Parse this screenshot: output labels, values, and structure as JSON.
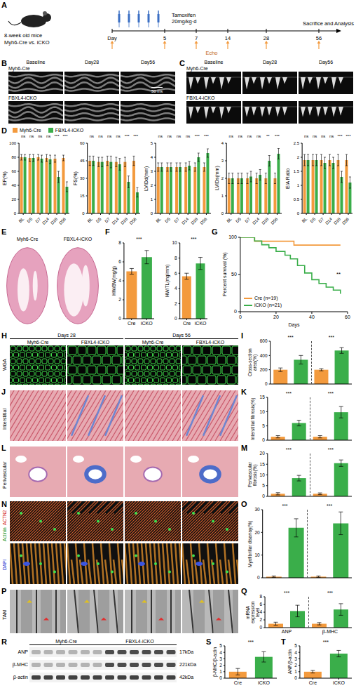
{
  "chart_data": [
    {
      "panel": "D",
      "type": "bar",
      "y_label": "EF(%)",
      "categories": [
        "BL",
        "D5",
        "D7",
        "D14",
        "D28",
        "D56"
      ],
      "series": [
        {
          "name": "Myh6-Cre",
          "color": "#f39a3d",
          "values": [
            80,
            79,
            80,
            79,
            78,
            79
          ],
          "errors": [
            4,
            5,
            4,
            5,
            5,
            4
          ]
        },
        {
          "name": "FBXL4-iCKO",
          "color": "#3aae4a",
          "values": [
            80,
            79,
            78,
            77,
            52,
            38
          ],
          "errors": [
            4,
            5,
            5,
            6,
            8,
            7
          ]
        }
      ],
      "ylim": [
        0,
        100
      ],
      "yticks": [
        0,
        20,
        40,
        60,
        80,
        100
      ],
      "annotations": [
        "ns",
        "ns",
        "ns",
        "ns",
        "***",
        "***"
      ],
      "legend": "top",
      "grid": false
    },
    {
      "type": "bar",
      "y_label": "FS(%)",
      "categories": [
        "BL",
        "D5",
        "D7",
        "D14",
        "D28",
        "D56"
      ],
      "series": [
        {
          "name": "Myh6-Cre",
          "color": "#f39a3d",
          "values": [
            45,
            44,
            45,
            44,
            44,
            45
          ],
          "errors": [
            4,
            4,
            4,
            4,
            4,
            4
          ]
        },
        {
          "name": "FBXL4-iCKO",
          "color": "#3aae4a",
          "values": [
            45,
            44,
            44,
            42,
            27,
            18
          ],
          "errors": [
            4,
            4,
            5,
            5,
            5,
            4
          ]
        }
      ],
      "ylim": [
        0,
        60
      ],
      "yticks": [
        0,
        15,
        30,
        45,
        60
      ],
      "annotations": [
        "ns",
        "ns",
        "ns",
        "ns",
        "***",
        "***"
      ],
      "grid": false
    },
    {
      "type": "bar",
      "y_label": "LVIDd(mm)",
      "categories": [
        "BL",
        "D5",
        "D7",
        "D14",
        "D28",
        "D56"
      ],
      "series": [
        {
          "name": "Myh6-Cre",
          "color": "#f39a3d",
          "values": [
            3.3,
            3.3,
            3.3,
            3.3,
            3.3,
            3.3
          ],
          "errors": [
            0.3,
            0.3,
            0.3,
            0.3,
            0.3,
            0.3
          ]
        },
        {
          "name": "FBXL4-iCKO",
          "color": "#3aae4a",
          "values": [
            3.3,
            3.3,
            3.3,
            3.4,
            4.0,
            4.3
          ],
          "errors": [
            0.3,
            0.3,
            0.3,
            0.3,
            0.3,
            0.3
          ]
        }
      ],
      "ylim": [
        0,
        5
      ],
      "yticks": [
        0,
        1,
        2,
        3,
        4,
        5
      ],
      "annotations": [
        "ns",
        "ns",
        "ns",
        "ns",
        "***",
        "***"
      ],
      "grid": false
    },
    {
      "type": "bar",
      "y_label": "LVIDs(mm)",
      "categories": [
        "BL",
        "D5",
        "D7",
        "D14",
        "D28",
        "D56"
      ],
      "series": [
        {
          "name": "Myh6-Cre",
          "color": "#f39a3d",
          "values": [
            2.0,
            2.0,
            2.0,
            2.0,
            2.0,
            2.0
          ],
          "errors": [
            0.3,
            0.3,
            0.3,
            0.3,
            0.3,
            0.3
          ]
        },
        {
          "name": "FBXL4-iCKO",
          "color": "#3aae4a",
          "values": [
            2.0,
            2.0,
            2.1,
            2.2,
            3.0,
            3.4
          ],
          "errors": [
            0.3,
            0.3,
            0.3,
            0.3,
            0.3,
            0.3
          ]
        }
      ],
      "ylim": [
        0,
        4
      ],
      "yticks": [
        0,
        1,
        2,
        3,
        4
      ],
      "annotations": [
        "ns",
        "ns",
        "ns",
        "ns",
        "**",
        "***"
      ],
      "grid": false
    },
    {
      "type": "bar",
      "y_label": "E/A Ratio",
      "categories": [
        "BL",
        "D5",
        "D7",
        "D14",
        "D28",
        "D56"
      ],
      "series": [
        {
          "name": "Myh6-Cre",
          "color": "#f39a3d",
          "values": [
            1.9,
            1.9,
            1.9,
            1.9,
            1.9,
            1.9
          ],
          "errors": [
            0.2,
            0.2,
            0.2,
            0.2,
            0.2,
            0.2
          ]
        },
        {
          "name": "FBXL4-iCKO",
          "color": "#3aae4a",
          "values": [
            1.9,
            1.9,
            1.8,
            1.8,
            1.3,
            1.1
          ],
          "errors": [
            0.2,
            0.2,
            0.2,
            0.2,
            0.2,
            0.2
          ]
        }
      ],
      "ylim": [
        0,
        2.5
      ],
      "yticks": [
        0,
        0.5,
        1,
        1.5,
        2,
        2.5
      ],
      "annotations": [
        "ns",
        "ns",
        "ns",
        "ns",
        "***",
        "***"
      ],
      "grid": false
    },
    {
      "panel": "F",
      "type": "bar",
      "y_label": "HW/BW(mg/g)",
      "categories": [
        "Cre",
        "iCKO"
      ],
      "values": [
        5,
        6.5
      ],
      "errors": [
        0.3,
        0.7
      ],
      "colors": [
        "#f39a3d",
        "#3aae4a"
      ],
      "ylim": [
        0,
        8
      ],
      "yticks": [
        0,
        2,
        4,
        6,
        8
      ],
      "annotations": [
        "***"
      ],
      "grid": false
    },
    {
      "type": "bar",
      "y_label": "HW/TL(mg/mm)",
      "categories": [
        "Cre",
        "iCKO"
      ],
      "values": [
        5.6,
        7.3
      ],
      "errors": [
        0.4,
        0.8
      ],
      "colors": [
        "#f39a3d",
        "#3aae4a"
      ],
      "ylim": [
        0,
        10
      ],
      "yticks": [
        0,
        2,
        4,
        6,
        8,
        10
      ],
      "annotations": [
        "***"
      ],
      "grid": false
    },
    {
      "panel": "G",
      "type": "line",
      "line_style": "step",
      "x_label": "Days",
      "y_label": "Percent survival (%)",
      "xlim": [
        0,
        60
      ],
      "xticks": [
        0,
        20,
        40,
        60
      ],
      "ylim": [
        0,
        100
      ],
      "yticks": [
        0,
        50,
        100
      ],
      "series": [
        {
          "name": "Cre (n=19)",
          "color": "#f39a3d",
          "x": [
            0,
            8,
            30,
            56
          ],
          "values": [
            100,
            94.7,
            89.5,
            89.5
          ]
        },
        {
          "name": "iCKO (n=21)",
          "color": "#3aae4a",
          "x": [
            0,
            8,
            12,
            16,
            20,
            25,
            28,
            32,
            36,
            40,
            44,
            48,
            52,
            56
          ],
          "values": [
            100,
            95,
            90,
            86,
            81,
            76,
            71,
            62,
            52,
            43,
            38,
            33,
            29,
            24
          ]
        }
      ],
      "legend": "lower left",
      "annotations": [
        "**"
      ],
      "grid": false
    },
    {
      "panel": "I",
      "type": "bar",
      "y_label": "Cross-section area(%)",
      "categories": [
        null,
        null,
        null,
        null
      ],
      "values": [
        200,
        340,
        200,
        470
      ],
      "errors": [
        25,
        60,
        15,
        40
      ],
      "colors": [
        "#f39a3d",
        "#3aae4a",
        "#f39a3d",
        "#3aae4a"
      ],
      "ylim": [
        0,
        600
      ],
      "yticks": [
        0,
        200,
        400,
        600
      ],
      "annotations": [
        "***",
        "***"
      ],
      "tick_labels": "y",
      "grid": false
    },
    {
      "panel": "K",
      "type": "bar",
      "y_label": "Interstitial fibrosis(%)",
      "categories": [
        null,
        null,
        null,
        null
      ],
      "values": [
        1.2,
        6,
        1.2,
        9.8
      ],
      "errors": [
        0.4,
        1,
        0.4,
        2
      ],
      "colors": [
        "#f39a3d",
        "#3aae4a",
        "#f39a3d",
        "#3aae4a"
      ],
      "ylim": [
        0,
        15
      ],
      "yticks": [
        0,
        5,
        10,
        15
      ],
      "annotations": [
        "***",
        "***"
      ],
      "tick_labels": "y",
      "grid": false
    },
    {
      "panel": "M",
      "type": "bar",
      "y_label": "Perivascular fibrosis(%)",
      "categories": [
        null,
        null,
        null,
        null
      ],
      "values": [
        1.2,
        8.5,
        1.2,
        15.5
      ],
      "errors": [
        0.5,
        1.3,
        0.4,
        1.5
      ],
      "colors": [
        "#f39a3d",
        "#3aae4a",
        "#f39a3d",
        "#3aae4a"
      ],
      "ylim": [
        0,
        20
      ],
      "yticks": [
        0,
        5,
        10,
        15,
        20
      ],
      "annotations": [
        "***",
        "***"
      ],
      "tick_labels": "y",
      "grid": false
    },
    {
      "panel": "O",
      "type": "bar",
      "y_label": "Myofibrillar disarray(%)",
      "categories": [
        null,
        null,
        null,
        null
      ],
      "values": [
        0.5,
        22,
        0.5,
        24
      ],
      "errors": [
        0.3,
        4,
        0.3,
        5
      ],
      "colors": [
        "#f39a3d",
        "#3aae4a",
        "#f39a3d",
        "#3aae4a"
      ],
      "ylim": [
        0,
        30
      ],
      "yticks": [
        0,
        10,
        20,
        30
      ],
      "annotations": [
        "***",
        "***"
      ],
      "tick_labels": "y",
      "grid": false
    },
    {
      "panel": "Q",
      "type": "bar",
      "y_label": "mRNA expression level",
      "categories": [
        null,
        null,
        null,
        null
      ],
      "groups": [
        "ANP",
        "β-MHC"
      ],
      "values": [
        1,
        4.3,
        1,
        4.7
      ],
      "errors": [
        0.4,
        1.5,
        0.3,
        1.5
      ],
      "colors": [
        "#f39a3d",
        "#3aae4a",
        "#f39a3d",
        "#3aae4a"
      ],
      "ylim": [
        0,
        8
      ],
      "yticks": [
        0,
        2,
        4,
        6,
        8
      ],
      "annotations": [
        "***",
        "***"
      ],
      "tick_labels": "y",
      "grid": false
    },
    {
      "panel": "S",
      "type": "bar",
      "y_label": "β-MHC/β-actin",
      "categories": [
        "Cre",
        "iCKO"
      ],
      "values": [
        1,
        3.3
      ],
      "errors": [
        0.5,
        0.8
      ],
      "colors": [
        "#f39a3d",
        "#3aae4a"
      ],
      "ylim": [
        0,
        5
      ],
      "yticks": [
        0,
        1,
        2,
        3,
        4,
        5
      ],
      "annotations": [
        "***"
      ],
      "grid": false
    },
    {
      "panel": "T",
      "type": "bar",
      "y_label": "ANP/β-actin",
      "categories": [
        "Cre",
        "iCKO"
      ],
      "values": [
        1,
        3.8
      ],
      "errors": [
        0.2,
        0.5
      ],
      "colors": [
        "#f39a3d",
        "#3aae4a"
      ],
      "ylim": [
        0,
        5
      ],
      "yticks": [
        0,
        1,
        2,
        3,
        4,
        5
      ],
      "annotations": [
        "***"
      ],
      "grid": false
    }
  ],
  "figure": {
    "schematic": {
      "label": "A",
      "subject": "8-week old mice",
      "groups": "Myh6-Cre vs. iCKO",
      "treatment": "Tamoxifen",
      "dose": "20mg/kg·d",
      "axis": "Day",
      "days": [
        5,
        7,
        14,
        28,
        56
      ],
      "echo": "Echo",
      "endpoint": "Sacrifice and Analysis"
    },
    "echo_mmode": {
      "label": "B",
      "columns": [
        "Baseline",
        "Day28",
        "Day56"
      ],
      "rows": [
        "Myh6-Cre",
        "FBXL4-iCKO"
      ],
      "scale_bar": "50 ms"
    },
    "echo_doppler": {
      "label": "C",
      "columns": [
        "Baseline",
        "Day28",
        "Day56"
      ],
      "rows": [
        "Myh6-Cre",
        "FBXL4-iCKO"
      ]
    },
    "heart_sections": {
      "label": "E",
      "columns": [
        "Myh6-Cre",
        "FBXL4-iCKO"
      ]
    },
    "wga": {
      "label": "H",
      "stain": "WGA",
      "groups": [
        "Days 28",
        "Days 56"
      ],
      "columns": [
        "Myh6-Cre",
        "FBXL4-iCKO",
        "Myh6-Cre",
        "FBXL4-iCKO"
      ]
    },
    "interstitial": {
      "label": "J",
      "stain": "Interstitial"
    },
    "perivascular": {
      "label": "L",
      "stain": "Perivascular"
    },
    "myofibril": {
      "label": "N",
      "stains": [
        "ACTN2",
        "Actinin",
        "DAPI"
      ]
    },
    "tem": {
      "label": "P",
      "stain": "TAM"
    },
    "western": {
      "label": "R",
      "columns": [
        "Myh6-Cre",
        "FBXL4-iCKO"
      ],
      "rows": [
        "ANP",
        "β-MHC",
        "β-actin"
      ],
      "sizes": [
        "17kDa",
        "221kDa",
        "42kDa"
      ]
    }
  }
}
